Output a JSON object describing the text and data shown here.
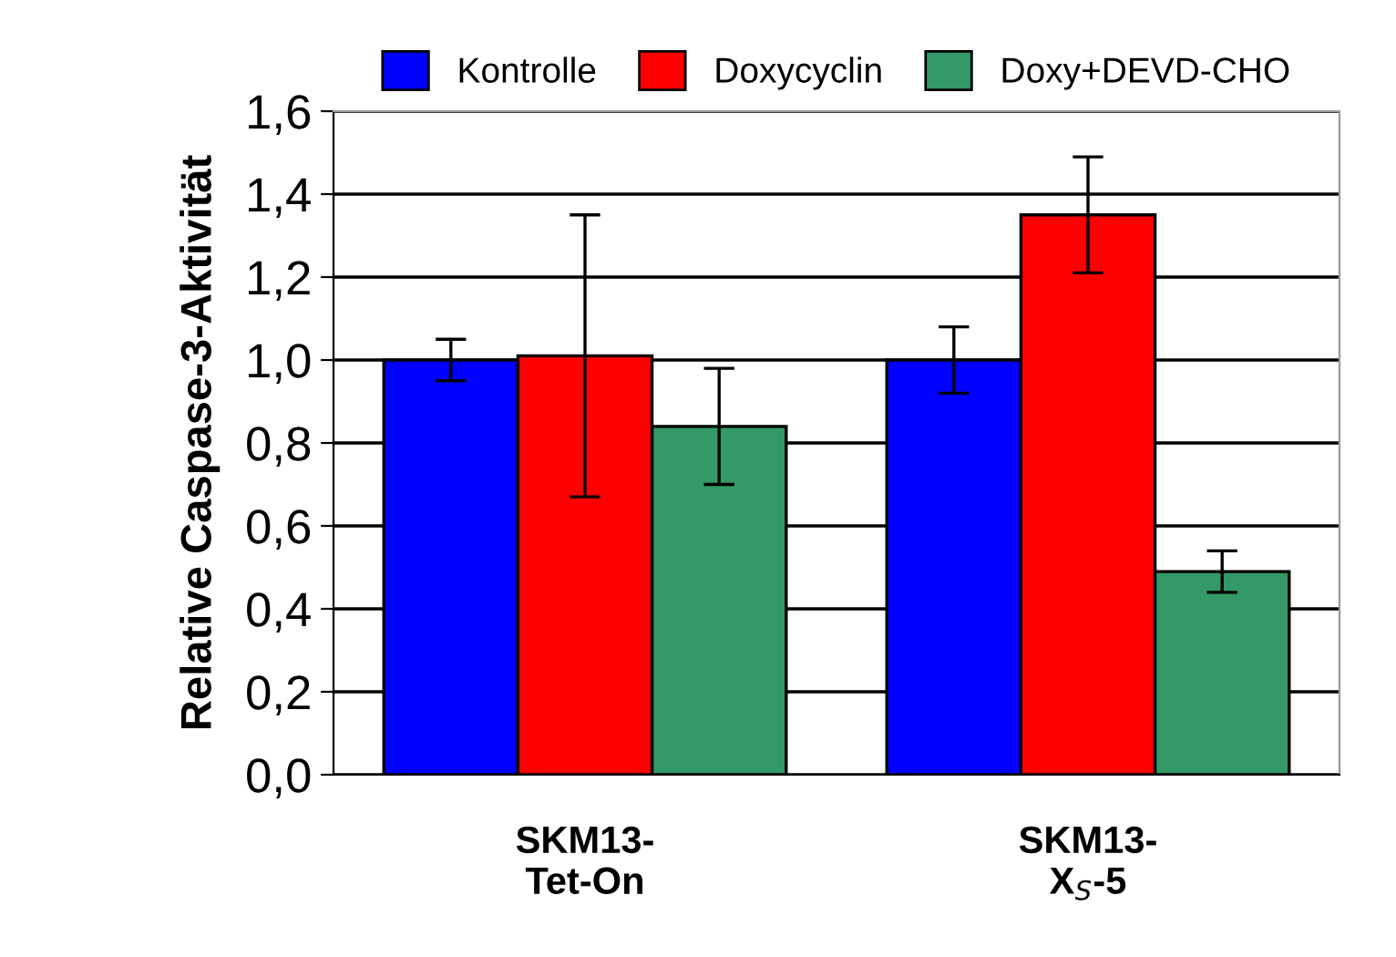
{
  "chart_data": {
    "type": "bar",
    "ylabel": "Relative Caspase-3-Aktivität",
    "categories": [
      "SKM13-\nTet-On",
      "SKM13-\nX$_{S}$-5"
    ],
    "series": [
      {
        "name": "Kontrolle",
        "color": "#0000ff",
        "values": [
          1.0,
          1.0
        ],
        "errors": [
          0.05,
          0.08
        ]
      },
      {
        "name": "Doxycyclin",
        "color": "#ff0000",
        "values": [
          1.01,
          1.35
        ],
        "errors": [
          0.34,
          0.14
        ]
      },
      {
        "name": "Doxy+DEVD-CHO",
        "color": "#339966",
        "values": [
          0.84,
          0.49
        ],
        "errors": [
          0.14,
          0.05
        ]
      }
    ],
    "ylim": [
      0,
      1.6
    ],
    "yticks": [
      {
        "value": 0,
        "label": "0,0"
      },
      {
        "value": 0.2,
        "label": "0,2"
      },
      {
        "value": 0.4,
        "label": "0,4"
      },
      {
        "value": 0.6,
        "label": "0,6"
      },
      {
        "value": 0.8,
        "label": "0,8"
      },
      {
        "value": 1.0,
        "label": "1,0"
      },
      {
        "value": 1.2,
        "label": "1,2"
      },
      {
        "value": 1.4,
        "label": "1,4"
      },
      {
        "value": 1.6,
        "label": "1,6"
      }
    ],
    "grid": "y",
    "legend": "top"
  }
}
